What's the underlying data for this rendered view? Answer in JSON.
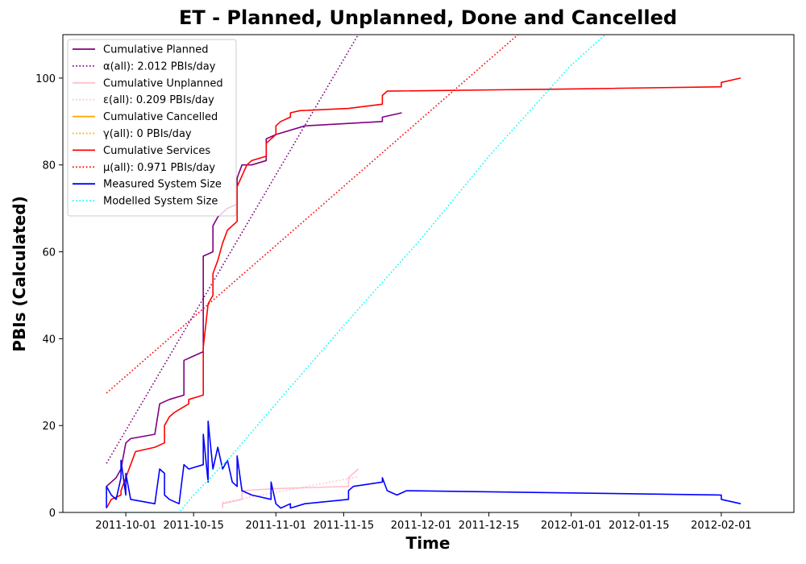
{
  "chart_data": {
    "type": "line",
    "title": "ET - Planned, Unplanned, Done  and Cancelled",
    "xlabel": "Time",
    "ylabel": "PBIs (Calculated)",
    "x_type": "date",
    "xlim": [
      "2011-09-18",
      "2012-02-16"
    ],
    "ylim": [
      0,
      110
    ],
    "x_ticks": [
      "2011-10-01",
      "2011-10-15",
      "2011-11-01",
      "2011-11-15",
      "2011-12-01",
      "2011-12-15",
      "2012-01-01",
      "2012-01-15",
      "2012-02-01"
    ],
    "y_ticks": [
      0,
      20,
      40,
      60,
      80,
      100
    ],
    "grid": false,
    "legend_position": "top-left",
    "series": [
      {
        "name": "Cumulative Planned",
        "color": "#800080",
        "style": "solid",
        "points": [
          [
            "2011-09-27",
            6
          ],
          [
            "2011-09-28",
            7
          ],
          [
            "2011-09-29",
            8
          ],
          [
            "2011-09-30",
            10
          ],
          [
            "2011-10-01",
            16
          ],
          [
            "2011-10-02",
            17
          ],
          [
            "2011-10-07",
            18
          ],
          [
            "2011-10-08",
            25
          ],
          [
            "2011-10-10",
            26
          ],
          [
            "2011-10-13",
            27
          ],
          [
            "2011-10-13",
            35
          ],
          [
            "2011-10-15",
            36
          ],
          [
            "2011-10-17",
            37
          ],
          [
            "2011-10-17",
            59
          ],
          [
            "2011-10-19",
            60
          ],
          [
            "2011-10-19",
            66
          ],
          [
            "2011-10-20",
            68
          ],
          [
            "2011-10-22",
            70
          ],
          [
            "2011-10-24",
            71
          ],
          [
            "2011-10-24",
            77
          ],
          [
            "2011-10-25",
            80
          ],
          [
            "2011-10-27",
            80
          ],
          [
            "2011-10-30",
            81
          ],
          [
            "2011-10-30",
            86
          ],
          [
            "2011-11-01",
            87
          ],
          [
            "2011-11-07",
            89
          ],
          [
            "2011-11-23",
            90
          ],
          [
            "2011-11-23",
            91
          ],
          [
            "2011-11-27",
            92
          ]
        ]
      },
      {
        "name": "α(all): 2.012 PBIs/day",
        "color": "#800080",
        "style": "dotted",
        "points": [
          [
            "2011-09-27",
            11.3
          ],
          [
            "2011-11-18",
            110
          ]
        ]
      },
      {
        "name": "Cumulative Unplanned",
        "color": "#FFC0CB",
        "style": "solid",
        "points": [
          [
            "2011-10-21",
            1
          ],
          [
            "2011-10-21",
            2
          ],
          [
            "2011-10-25",
            3
          ],
          [
            "2011-10-25",
            5
          ],
          [
            "2011-11-01",
            5.5
          ],
          [
            "2011-11-16",
            6
          ],
          [
            "2011-11-16",
            8
          ],
          [
            "2011-11-18",
            10
          ]
        ]
      },
      {
        "name": "ε(all): 0.209 PBIs/day",
        "color": "#FFC0CB",
        "style": "dotted",
        "points": [
          [
            "2011-10-21",
            2.3
          ],
          [
            "2011-11-18",
            8.2
          ]
        ]
      },
      {
        "name": "Cumulative Cancelled",
        "color": "#FFA500",
        "style": "solid",
        "points": []
      },
      {
        "name": "γ(all): 0 PBIs/day",
        "color": "#FFA500",
        "style": "dotted",
        "points": []
      },
      {
        "name": "Cumulative Services",
        "color": "#FF0000",
        "style": "solid",
        "points": [
          [
            "2011-09-27",
            1
          ],
          [
            "2011-09-28",
            3
          ],
          [
            "2011-09-30",
            4
          ],
          [
            "2011-09-30",
            5
          ],
          [
            "2011-10-01",
            8
          ],
          [
            "2011-10-02",
            11
          ],
          [
            "2011-10-03",
            14
          ],
          [
            "2011-10-07",
            15
          ],
          [
            "2011-10-09",
            16
          ],
          [
            "2011-10-09",
            20
          ],
          [
            "2011-10-10",
            22
          ],
          [
            "2011-10-11",
            23
          ],
          [
            "2011-10-14",
            25
          ],
          [
            "2011-10-14",
            26
          ],
          [
            "2011-10-17",
            27
          ],
          [
            "2011-10-17",
            38
          ],
          [
            "2011-10-18",
            48
          ],
          [
            "2011-10-19",
            50
          ],
          [
            "2011-10-19",
            55
          ],
          [
            "2011-10-20",
            58
          ],
          [
            "2011-10-21",
            62
          ],
          [
            "2011-10-22",
            65
          ],
          [
            "2011-10-24",
            67
          ],
          [
            "2011-10-24",
            75
          ],
          [
            "2011-10-26",
            80
          ],
          [
            "2011-10-27",
            81
          ],
          [
            "2011-10-30",
            82
          ],
          [
            "2011-10-30",
            85
          ],
          [
            "2011-11-01",
            87
          ],
          [
            "2011-11-01",
            89
          ],
          [
            "2011-11-02",
            90
          ],
          [
            "2011-11-04",
            91
          ],
          [
            "2011-11-04",
            92
          ],
          [
            "2011-11-06",
            92.5
          ],
          [
            "2011-11-16",
            93
          ],
          [
            "2011-11-23",
            94
          ],
          [
            "2011-11-23",
            96
          ],
          [
            "2011-11-24",
            97
          ],
          [
            "2012-01-01",
            97.5
          ],
          [
            "2012-02-01",
            98
          ],
          [
            "2012-02-01",
            99
          ],
          [
            "2012-02-05",
            100
          ]
        ]
      },
      {
        "name": "μ(all): 0.971 PBIs/day",
        "color": "#FF0000",
        "style": "dotted",
        "points": [
          [
            "2011-09-27",
            27.5
          ],
          [
            "2011-12-21",
            110
          ]
        ]
      },
      {
        "name": "Measured System Size",
        "color": "#0000FF",
        "style": "solid",
        "points": [
          [
            "2011-09-27",
            1
          ],
          [
            "2011-09-27",
            6
          ],
          [
            "2011-09-28",
            4
          ],
          [
            "2011-09-29",
            3
          ],
          [
            "2011-09-30",
            8
          ],
          [
            "2011-09-30",
            12
          ],
          [
            "2011-10-01",
            4
          ],
          [
            "2011-10-01",
            9
          ],
          [
            "2011-10-02",
            3
          ],
          [
            "2011-10-07",
            2
          ],
          [
            "2011-10-08",
            10
          ],
          [
            "2011-10-09",
            9
          ],
          [
            "2011-10-09",
            4
          ],
          [
            "2011-10-10",
            3
          ],
          [
            "2011-10-12",
            2
          ],
          [
            "2011-10-13",
            11
          ],
          [
            "2011-10-14",
            10
          ],
          [
            "2011-10-17",
            11
          ],
          [
            "2011-10-17",
            18
          ],
          [
            "2011-10-18",
            7
          ],
          [
            "2011-10-18",
            21
          ],
          [
            "2011-10-19",
            10
          ],
          [
            "2011-10-20",
            15
          ],
          [
            "2011-10-21",
            10
          ],
          [
            "2011-10-22",
            12
          ],
          [
            "2011-10-23",
            7
          ],
          [
            "2011-10-24",
            6
          ],
          [
            "2011-10-24",
            13
          ],
          [
            "2011-10-25",
            5
          ],
          [
            "2011-10-27",
            4
          ],
          [
            "2011-10-31",
            3
          ],
          [
            "2011-10-31",
            7
          ],
          [
            "2011-11-01",
            2
          ],
          [
            "2011-11-02",
            1
          ],
          [
            "2011-11-04",
            2
          ],
          [
            "2011-11-04",
            1
          ],
          [
            "2011-11-07",
            2
          ],
          [
            "2011-11-16",
            3
          ],
          [
            "2011-11-16",
            5
          ],
          [
            "2011-11-17",
            6
          ],
          [
            "2011-11-23",
            7
          ],
          [
            "2011-11-23",
            8
          ],
          [
            "2011-11-24",
            5
          ],
          [
            "2011-11-26",
            4
          ],
          [
            "2011-11-28",
            5
          ],
          [
            "2012-02-01",
            4
          ],
          [
            "2012-02-01",
            3
          ],
          [
            "2012-02-05",
            2
          ]
        ]
      },
      {
        "name": "Modelled System Size",
        "color": "#00FFFF",
        "style": "dotted",
        "points": [
          [
            "2011-09-27",
            0
          ],
          [
            "2011-10-12",
            0
          ],
          [
            "2011-10-15",
            4
          ],
          [
            "2011-10-22",
            12
          ],
          [
            "2011-11-01",
            25
          ],
          [
            "2011-11-15",
            43
          ],
          [
            "2011-12-01",
            63
          ],
          [
            "2011-12-15",
            82
          ],
          [
            "2012-01-01",
            103
          ],
          [
            "2012-01-08",
            110
          ]
        ]
      }
    ]
  }
}
